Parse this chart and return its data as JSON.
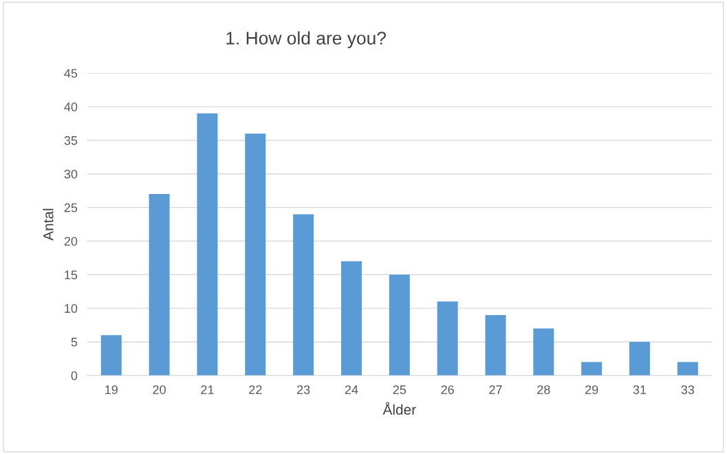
{
  "chart_data": {
    "type": "bar",
    "title": "1. How old are you?",
    "xlabel": "Ålder",
    "ylabel": "Antal",
    "categories": [
      "19",
      "20",
      "21",
      "22",
      "23",
      "24",
      "25",
      "26",
      "27",
      "28",
      "29",
      "31",
      "33"
    ],
    "values": [
      6,
      27,
      39,
      36,
      24,
      17,
      15,
      11,
      9,
      7,
      2,
      5,
      2
    ],
    "color": "#5b9bd5",
    "ylim": [
      0,
      45
    ],
    "yticks": [
      0,
      5,
      10,
      15,
      20,
      25,
      30,
      35,
      40,
      45
    ],
    "grid": "y"
  }
}
